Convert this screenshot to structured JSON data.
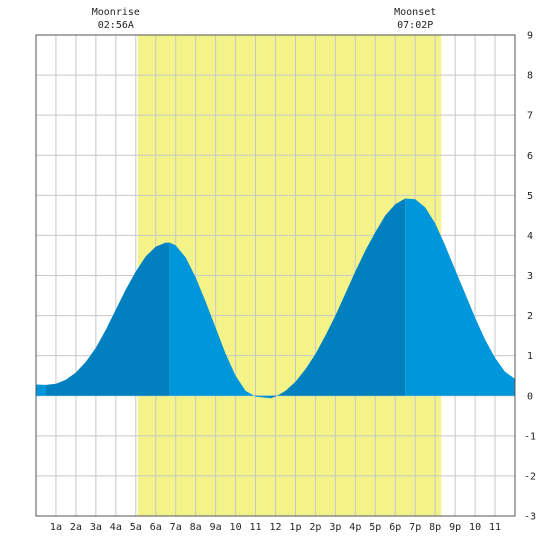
{
  "chart_data": {
    "type": "area",
    "x_unit": "hour",
    "xlim": [
      0,
      24
    ],
    "ylim": [
      -3,
      9
    ],
    "x_ticks": [
      {
        "x": 1,
        "label": "1a"
      },
      {
        "x": 2,
        "label": "2a"
      },
      {
        "x": 3,
        "label": "3a"
      },
      {
        "x": 4,
        "label": "4a"
      },
      {
        "x": 5,
        "label": "5a"
      },
      {
        "x": 6,
        "label": "6a"
      },
      {
        "x": 7,
        "label": "7a"
      },
      {
        "x": 8,
        "label": "8a"
      },
      {
        "x": 9,
        "label": "9a"
      },
      {
        "x": 10,
        "label": "10"
      },
      {
        "x": 11,
        "label": "11"
      },
      {
        "x": 12,
        "label": "12"
      },
      {
        "x": 13,
        "label": "1p"
      },
      {
        "x": 14,
        "label": "2p"
      },
      {
        "x": 15,
        "label": "3p"
      },
      {
        "x": 16,
        "label": "4p"
      },
      {
        "x": 17,
        "label": "5p"
      },
      {
        "x": 18,
        "label": "6p"
      },
      {
        "x": 19,
        "label": "7p"
      },
      {
        "x": 20,
        "label": "8p"
      },
      {
        "x": 21,
        "label": "9p"
      },
      {
        "x": 22,
        "label": "10"
      },
      {
        "x": 23,
        "label": "11"
      }
    ],
    "y_ticks": [
      {
        "y": 9,
        "label": "9"
      },
      {
        "y": 8,
        "label": "8"
      },
      {
        "y": 7,
        "label": "7"
      },
      {
        "y": 6,
        "label": "6"
      },
      {
        "y": 5,
        "label": "5"
      },
      {
        "y": 4,
        "label": "4"
      },
      {
        "y": 3,
        "label": "3"
      },
      {
        "y": 2,
        "label": "2"
      },
      {
        "y": 1,
        "label": "1"
      },
      {
        "y": 0,
        "label": "0"
      },
      {
        "y": -1,
        "label": "-1"
      },
      {
        "y": -2,
        "label": "-2"
      },
      {
        "y": -3,
        "label": "-3"
      }
    ],
    "grid": true,
    "moon_up_window": [
      5.1,
      20.3
    ],
    "annotations": [
      {
        "x": 4.0,
        "title": "Moonrise",
        "time": "02:56A"
      },
      {
        "x": 19.0,
        "title": "Moonset",
        "time": "07:02P"
      }
    ],
    "series": [
      {
        "x": [
          0,
          0.5,
          1,
          1.5,
          2,
          2.5,
          3,
          3.5,
          4,
          4.5,
          5,
          5.5,
          6,
          6.5,
          6.7,
          7,
          7.5,
          8,
          8.5,
          9,
          9.5,
          10,
          10.5,
          11,
          11.5,
          11.75,
          12,
          12.5,
          13,
          13.5,
          14,
          14.5,
          15,
          15.5,
          16,
          16.5,
          17,
          17.5,
          18,
          18.5,
          19,
          19.5,
          20,
          20.5,
          21,
          21.5,
          22,
          22.5,
          23,
          23.5,
          24
        ],
        "values": [
          0.28,
          0.27,
          0.3,
          0.4,
          0.58,
          0.85,
          1.2,
          1.65,
          2.15,
          2.65,
          3.1,
          3.48,
          3.72,
          3.82,
          3.82,
          3.75,
          3.45,
          2.95,
          2.35,
          1.7,
          1.05,
          0.5,
          0.12,
          -0.02,
          -0.05,
          -0.06,
          -0.02,
          0.12,
          0.35,
          0.66,
          1.04,
          1.5,
          2.0,
          2.55,
          3.1,
          3.62,
          4.08,
          4.5,
          4.78,
          4.92,
          4.9,
          4.7,
          4.3,
          3.75,
          3.15,
          2.55,
          1.95,
          1.4,
          0.95,
          0.6,
          0.42
        ]
      }
    ],
    "colors": {
      "daylight": "#f3f38a",
      "tide_dark": "#0080bf",
      "tide_light": "#0096dc",
      "grid": "#c8c8c8",
      "frame": "#555555"
    }
  }
}
